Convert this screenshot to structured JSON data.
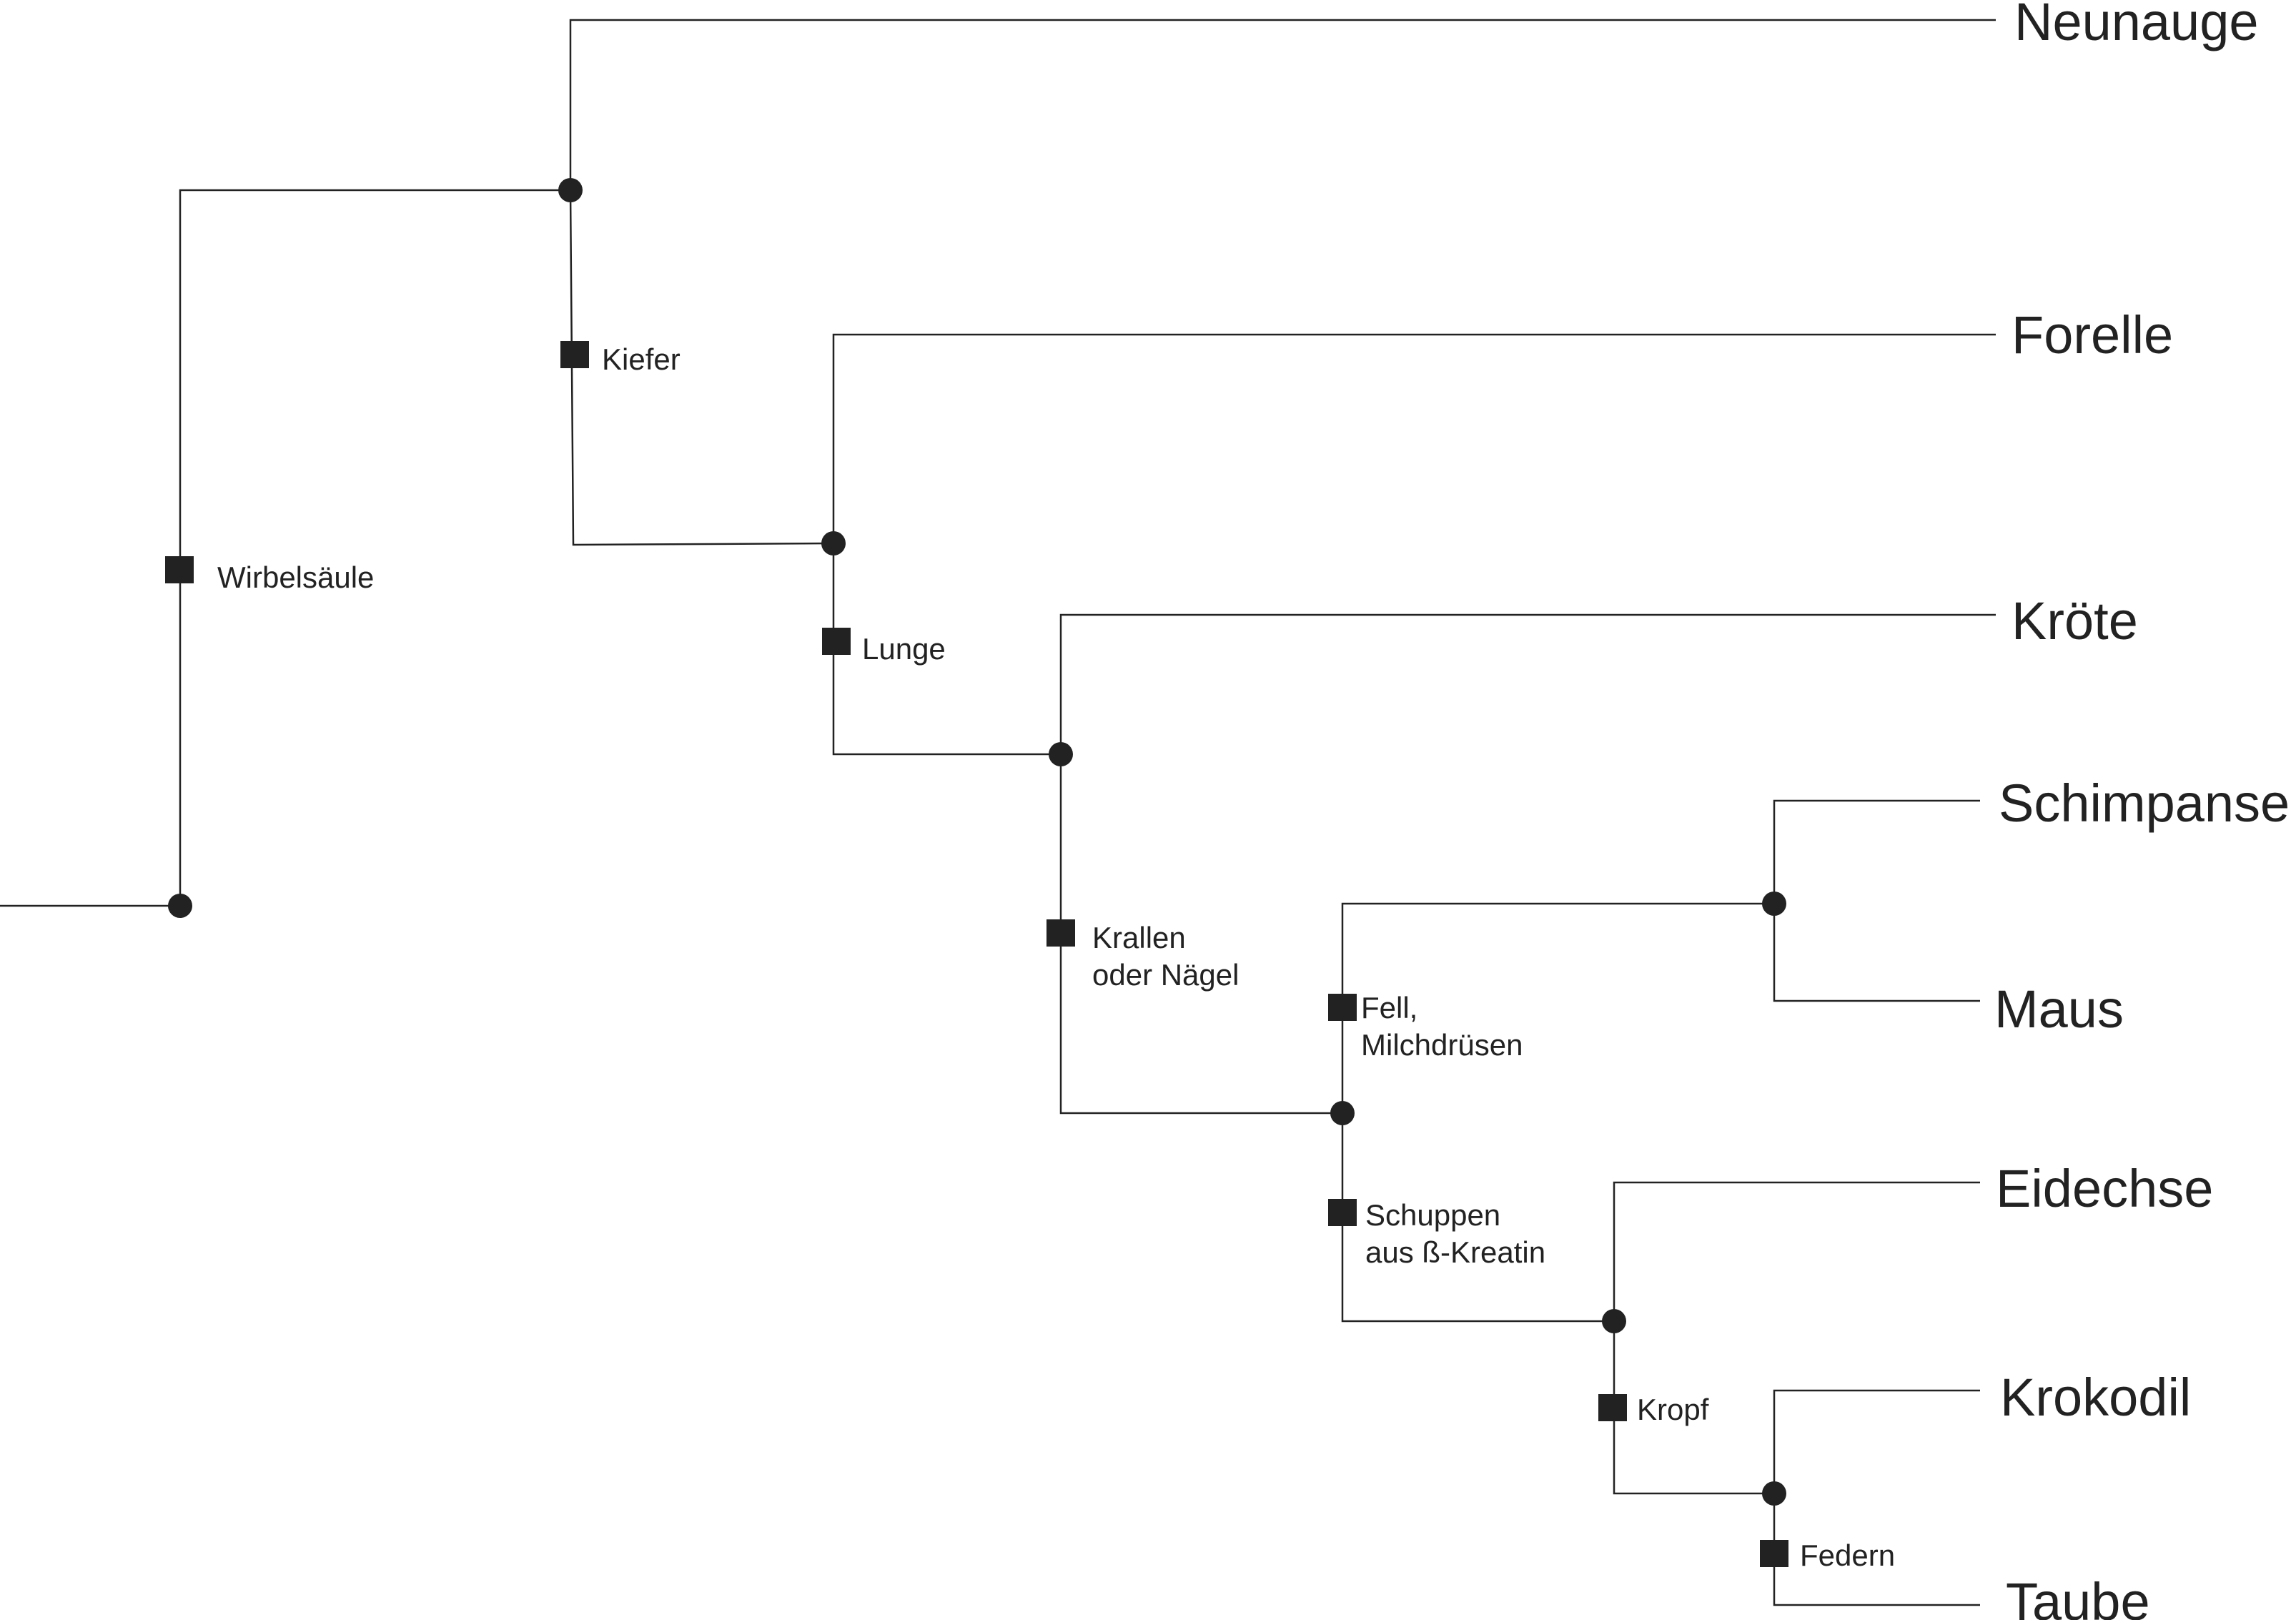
{
  "taxa": {
    "neunauge": "Neunauge",
    "forelle": "Forelle",
    "kroete": "Kröte",
    "schimpanse": "Schimpanse",
    "maus": "Maus",
    "eidechse": "Eidechse",
    "krokodil": "Krokodil",
    "taube": "Taube"
  },
  "traits": {
    "wirbelsaeule": [
      "Wirbelsäule"
    ],
    "kiefer": [
      "Kiefer"
    ],
    "lunge": [
      "Lunge"
    ],
    "krallen": [
      "Krallen",
      "oder Nägel"
    ],
    "fell": [
      "Fell,",
      "Milchdrüsen"
    ],
    "schuppen": [
      "Schuppen",
      "aus ß-Kreatin"
    ],
    "kropf": [
      "Kropf"
    ],
    "federn": [
      "Federn"
    ]
  },
  "colors": {
    "line": "#222222",
    "background": "#ffffff"
  }
}
